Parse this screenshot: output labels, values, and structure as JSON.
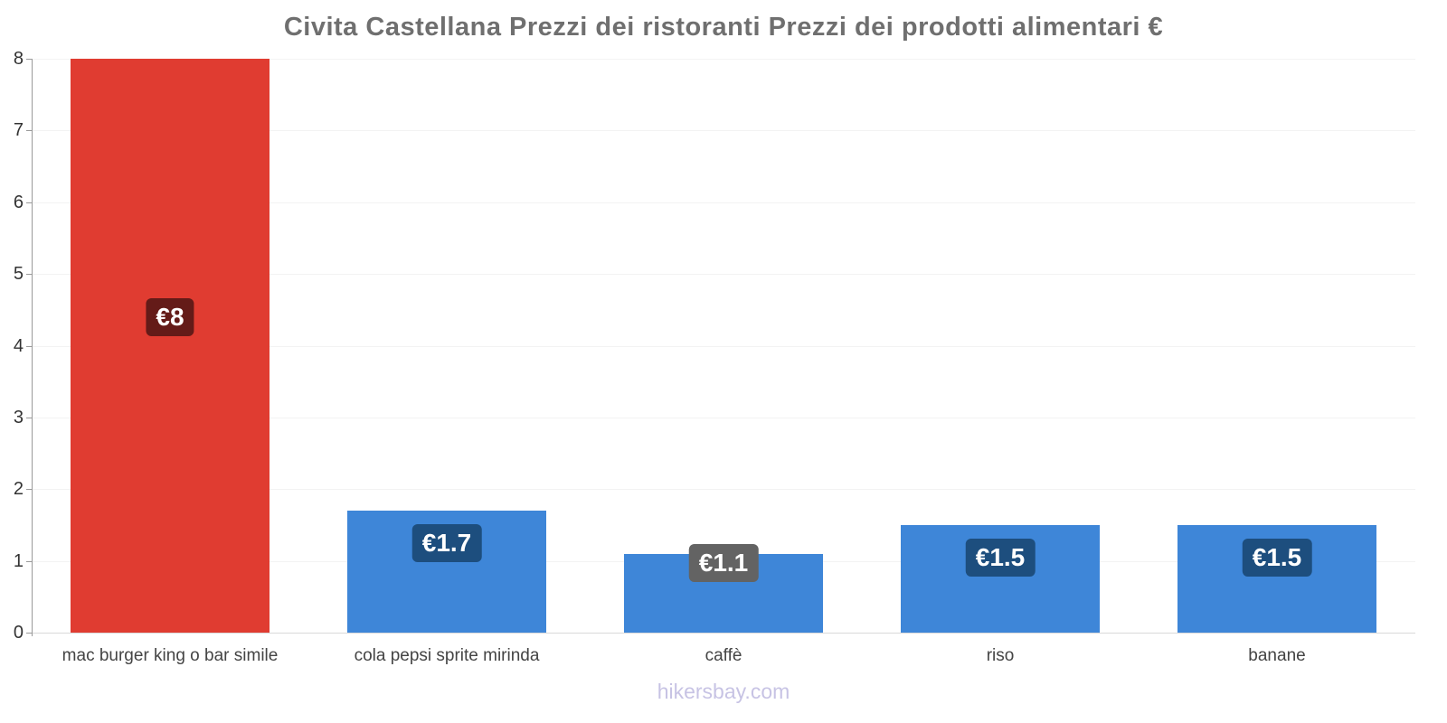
{
  "footer": "hikersbay.com",
  "chart_data": {
    "type": "bar",
    "title": "Civita Castellana Prezzi dei ristoranti Prezzi dei prodotti alimentari €",
    "categories": [
      "mac burger king o bar simile",
      "cola pepsi sprite mirinda",
      "caffè",
      "riso",
      "banane"
    ],
    "values": [
      8,
      1.7,
      1.1,
      1.5,
      1.5
    ],
    "data_labels": [
      "€8",
      "€1.7",
      "€1.1",
      "€1.5",
      "€1.5"
    ],
    "bar_colors": [
      "#e03c31",
      "#3e86d8",
      "#3e86d8",
      "#3e86d8",
      "#3e86d8"
    ],
    "badge_colors": [
      "#641b18",
      "#1d4e7e",
      "#636363",
      "#1d4e7e",
      "#1d4e7e"
    ],
    "xlabel": "",
    "ylabel": "",
    "ylim": [
      0,
      8
    ],
    "yticks": [
      0,
      1,
      2,
      3,
      4,
      5,
      6,
      7,
      8
    ],
    "grid": true,
    "legend": false,
    "currency": "€"
  }
}
